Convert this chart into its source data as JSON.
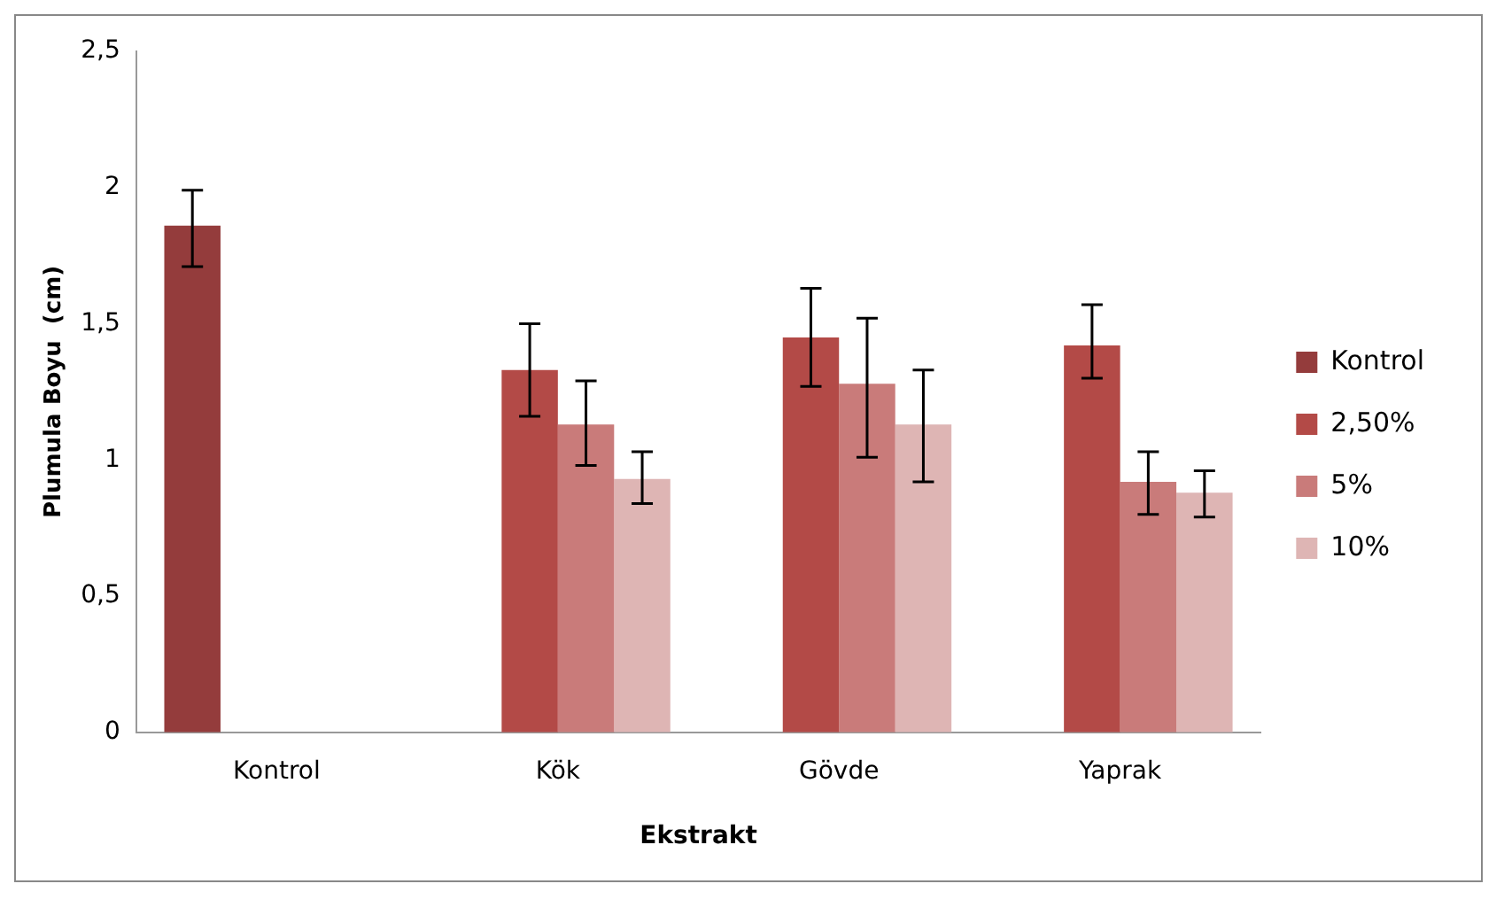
{
  "chart_data": {
    "type": "bar",
    "xlabel": "Ekstrakt",
    "ylabel": "Plumula Boyu  (cm)",
    "categories": [
      "Kontrol",
      "Kök",
      "Gövde",
      "Yaprak"
    ],
    "series": [
      {
        "name": "Kontrol",
        "color": "#943c3c",
        "values": [
          1.86,
          null,
          null,
          null
        ],
        "errors": [
          [
            1.71,
            1.99
          ],
          null,
          null,
          null
        ]
      },
      {
        "name": "2,50%",
        "color": "#b34a47",
        "values": [
          null,
          1.33,
          1.45,
          1.42
        ],
        "errors": [
          null,
          [
            1.16,
            1.5
          ],
          [
            1.27,
            1.63
          ],
          [
            1.3,
            1.57
          ]
        ]
      },
      {
        "name": "5%",
        "color": "#c97b7a",
        "values": [
          null,
          1.13,
          1.28,
          0.92
        ],
        "errors": [
          null,
          [
            0.98,
            1.29
          ],
          [
            1.01,
            1.52
          ],
          [
            0.8,
            1.03
          ]
        ]
      },
      {
        "name": "10%",
        "color": "#deb5b4",
        "values": [
          null,
          0.93,
          1.13,
          0.88
        ],
        "errors": [
          null,
          [
            0.84,
            1.03
          ],
          [
            0.92,
            1.33
          ],
          [
            0.79,
            0.96
          ]
        ]
      }
    ],
    "ylim": [
      0,
      2.5
    ],
    "yticks": [
      0,
      {
        "value": 0.5,
        "label": "0,5"
      },
      1,
      {
        "value": 1.5,
        "label": "1,5"
      },
      2,
      {
        "value": 2.5,
        "label": "2,5"
      }
    ],
    "grid": false,
    "legend": "right"
  }
}
